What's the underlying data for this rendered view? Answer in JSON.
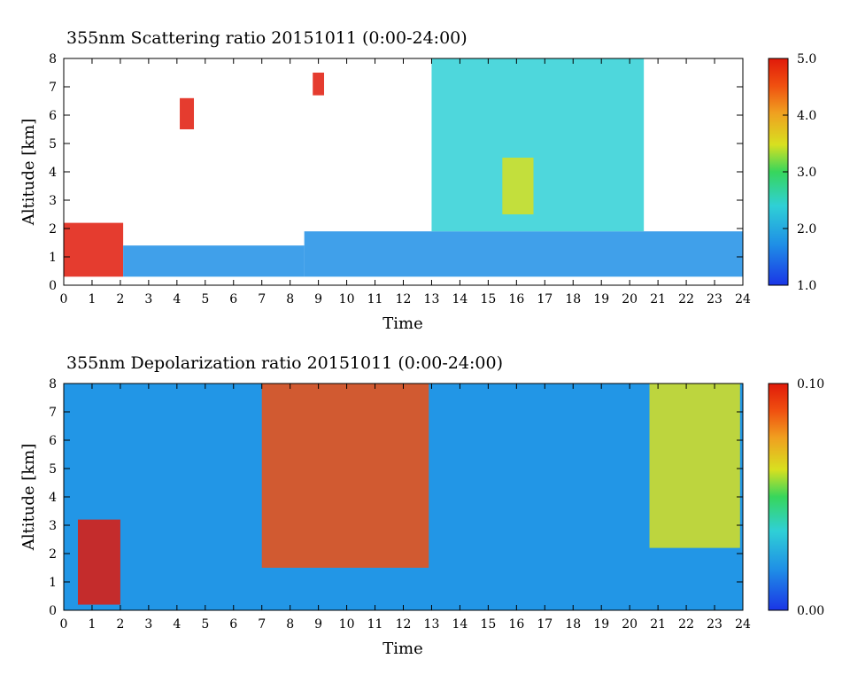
{
  "chart_data": [
    {
      "type": "heatmap",
      "title": "355nm Scattering ratio  20151011 (0:00-24:00)",
      "xlabel": "Time",
      "ylabel": "Altitude [km]",
      "x_ticks": [
        "0",
        "1",
        "2",
        "3",
        "4",
        "5",
        "6",
        "7",
        "8",
        "9",
        "10",
        "11",
        "12",
        "13",
        "14",
        "15",
        "16",
        "17",
        "18",
        "19",
        "20",
        "21",
        "22",
        "23",
        "24"
      ],
      "y_ticks": [
        "0",
        "1",
        "2",
        "3",
        "4",
        "5",
        "6",
        "7",
        "8"
      ],
      "xlim": [
        0,
        24
      ],
      "ylim": [
        0,
        8
      ],
      "colorbar": {
        "min": 1.0,
        "max": 5.0,
        "ticks": [
          "1.0",
          "2.0",
          "3.0",
          "4.0",
          "5.0"
        ]
      },
      "colormap": [
        "#1a35e6",
        "#1f8fe6",
        "#2fd0d6",
        "#37d65c",
        "#d8e020",
        "#f0a020",
        "#f05010",
        "#e01a0a"
      ],
      "regions": [
        {
          "t": [
            0,
            2.1
          ],
          "z": [
            0.3,
            2.2
          ],
          "value": 5.0
        },
        {
          "t": [
            2.1,
            8.5
          ],
          "z": [
            0.3,
            1.4
          ],
          "value": 1.7
        },
        {
          "t": [
            8.5,
            24
          ],
          "z": [
            0.3,
            1.9
          ],
          "value": 1.8
        },
        {
          "t": [
            4.1,
            4.6
          ],
          "z": [
            5.5,
            6.6
          ],
          "value": 5.0
        },
        {
          "t": [
            8.8,
            9.2
          ],
          "z": [
            6.7,
            7.5
          ],
          "value": 5.0
        },
        {
          "t": [
            13.0,
            20.5
          ],
          "z": [
            1.9,
            8.0
          ],
          "value": 2.3
        },
        {
          "t": [
            15.5,
            16.6
          ],
          "z": [
            2.5,
            4.5
          ],
          "value": 3.0
        }
      ]
    },
    {
      "type": "heatmap",
      "title": "355nm Depolarization ratio  20151011 (0:00-24:00)",
      "xlabel": "Time",
      "ylabel": "Altitude [km]",
      "x_ticks": [
        "0",
        "1",
        "2",
        "3",
        "4",
        "5",
        "6",
        "7",
        "8",
        "9",
        "10",
        "11",
        "12",
        "13",
        "14",
        "15",
        "16",
        "17",
        "18",
        "19",
        "20",
        "21",
        "22",
        "23",
        "24"
      ],
      "y_ticks": [
        "0",
        "1",
        "2",
        "3",
        "4",
        "5",
        "6",
        "7",
        "8"
      ],
      "xlim": [
        0,
        24
      ],
      "ylim": [
        0,
        8
      ],
      "colorbar": {
        "min": 0.0,
        "max": 0.1,
        "ticks": [
          "0.00",
          "0.10"
        ]
      },
      "colormap": [
        "#1a35e6",
        "#1f8fe6",
        "#2fd0d6",
        "#37d65c",
        "#d8e020",
        "#f0a020",
        "#f05010",
        "#e01a0a"
      ],
      "regions": [
        {
          "t": [
            0,
            24
          ],
          "z": [
            0,
            8
          ],
          "value": 0.02
        },
        {
          "t": [
            0.5,
            2.0
          ],
          "z": [
            0.2,
            3.2
          ],
          "value": 0.1
        },
        {
          "t": [
            7.0,
            12.9
          ],
          "z": [
            1.5,
            8.0
          ],
          "value": 0.08
        },
        {
          "t": [
            20.7,
            23.9
          ],
          "z": [
            2.2,
            8.0
          ],
          "value": 0.06
        }
      ]
    }
  ]
}
